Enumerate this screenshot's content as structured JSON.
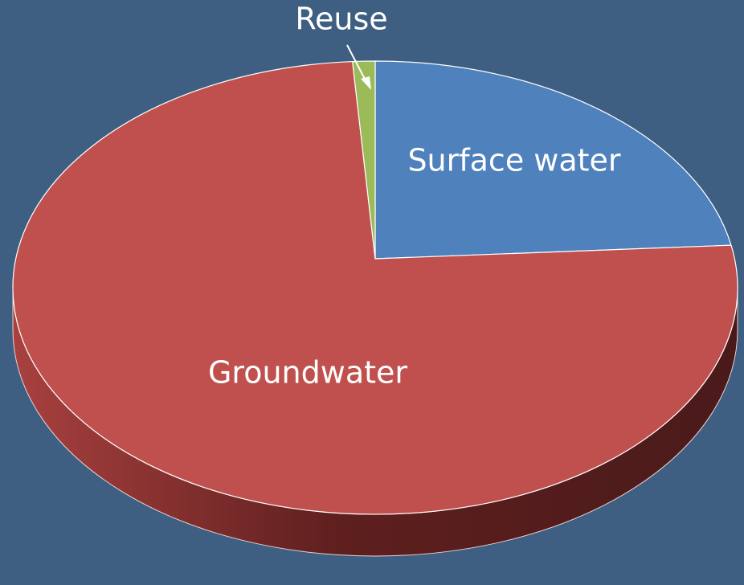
{
  "chart_data": {
    "type": "pie",
    "categories": [
      "Surface water",
      "Groundwater",
      "Reuse"
    ],
    "values": [
      22,
      77,
      1
    ],
    "colors": [
      "#4f81bd",
      "#c0504d",
      "#9bbb59"
    ]
  }
}
